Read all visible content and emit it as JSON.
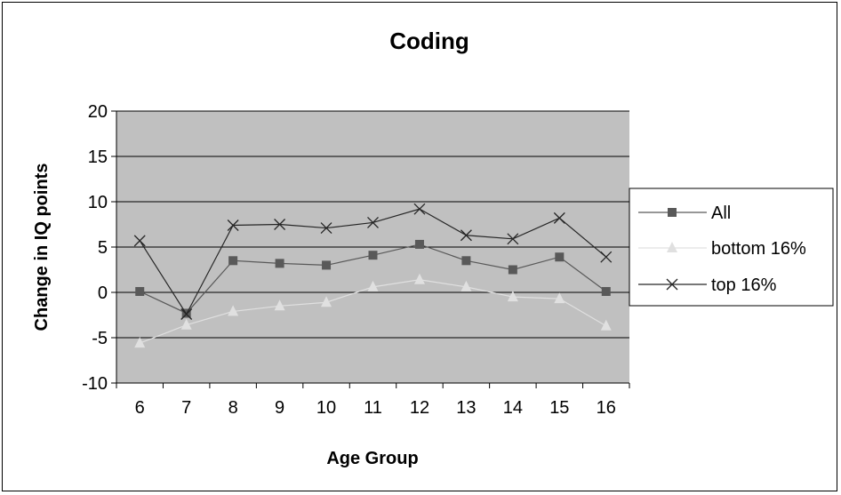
{
  "chart_data": {
    "type": "line",
    "title": "Coding",
    "xlabel": "Age Group",
    "ylabel": "Change in IQ points",
    "categories": [
      "6",
      "7",
      "8",
      "9",
      "10",
      "11",
      "12",
      "13",
      "14",
      "15",
      "16"
    ],
    "ylim": [
      -10,
      20
    ],
    "yticks": [
      "-10",
      "-5",
      "0",
      "5",
      "10",
      "15",
      "20"
    ],
    "grid": true,
    "legend_position": "right",
    "series": [
      {
        "name": "All",
        "marker": "square",
        "color": "#595959",
        "values": [
          0.1,
          -2.3,
          3.5,
          3.2,
          3.0,
          4.1,
          5.3,
          3.5,
          2.5,
          3.9,
          0.1
        ]
      },
      {
        "name": "bottom 16%",
        "marker": "triangle",
        "color": "#e0e0e0",
        "values": [
          -5.6,
          -3.6,
          -2.1,
          -1.5,
          -1.1,
          0.6,
          1.4,
          0.6,
          -0.5,
          -0.7,
          -3.7
        ]
      },
      {
        "name": "top 16%",
        "marker": "x",
        "color": "#262626",
        "values": [
          5.7,
          -2.4,
          7.4,
          7.5,
          7.1,
          7.7,
          9.2,
          6.3,
          5.9,
          8.2,
          3.9
        ]
      }
    ],
    "colors": {
      "plot_background": "#c0c0c0",
      "gridline": "#000000"
    }
  }
}
